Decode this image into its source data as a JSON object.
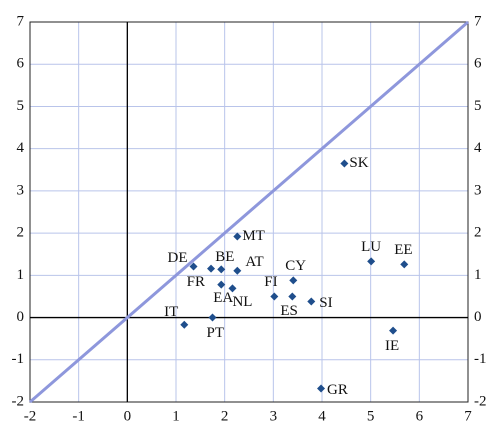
{
  "chart_data": {
    "type": "scatter",
    "x": [
      4.46,
      2.26,
      1.36,
      1.72,
      1.93,
      2.26,
      1.93,
      2.16,
      3.02,
      3.39,
      3.78,
      3.41,
      5.01,
      5.69,
      5.46,
      1.17,
      1.75,
      3.98
    ],
    "values": [
      3.65,
      1.92,
      1.21,
      1.16,
      1.14,
      1.11,
      0.78,
      0.69,
      0.5,
      0.5,
      0.38,
      0.88,
      1.33,
      1.26,
      -0.31,
      -0.17,
      0.0,
      -1.68
    ],
    "point_labels": [
      "SK",
      "MT",
      "DE",
      "FR",
      "BE",
      "AT",
      "EA",
      "NL",
      "FI",
      "ES",
      "SI",
      "CY",
      "LU",
      "EE",
      "IE",
      "IT",
      "PT",
      "GR"
    ],
    "color": "#1f4e8c",
    "xlim": [
      -2,
      7
    ],
    "ylim": [
      -2,
      7
    ],
    "xticks": [
      -2,
      -1,
      0,
      1,
      2,
      3,
      4,
      5,
      6,
      7
    ],
    "yticks": [
      -2,
      -1,
      0,
      1,
      2,
      3,
      4,
      5,
      6,
      7
    ],
    "grid": true
  }
}
